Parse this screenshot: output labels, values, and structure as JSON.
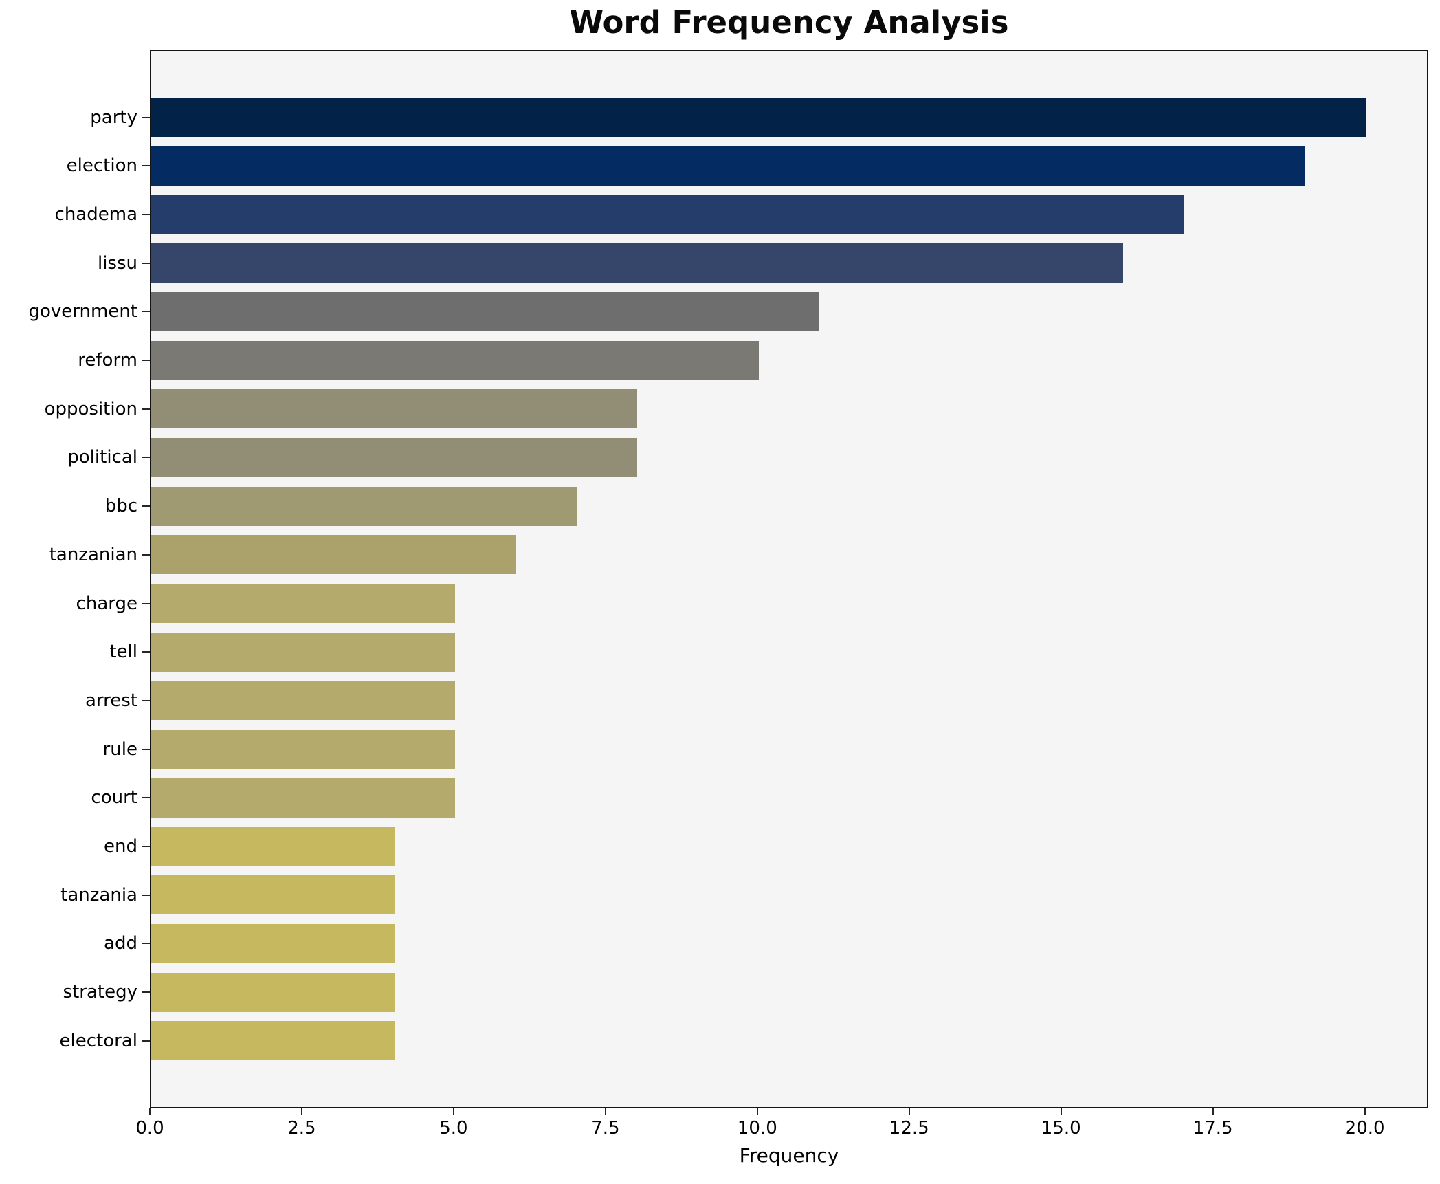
{
  "chart_data": {
    "type": "bar",
    "orientation": "horizontal",
    "title": "Word Frequency Analysis",
    "xlabel": "Frequency",
    "ylabel": "",
    "categories": [
      "party",
      "election",
      "chadema",
      "lissu",
      "government",
      "reform",
      "opposition",
      "political",
      "bbc",
      "tanzanian",
      "charge",
      "tell",
      "arrest",
      "rule",
      "court",
      "end",
      "tanzania",
      "add",
      "strategy",
      "electoral"
    ],
    "values": [
      20,
      19,
      17,
      16,
      11,
      10,
      8,
      8,
      7,
      6,
      5,
      5,
      5,
      5,
      5,
      4,
      4,
      4,
      4,
      4
    ],
    "bar_colors": [
      "#032248",
      "#042c62",
      "#253d6b",
      "#36466b",
      "#6f6e6e",
      "#7b7974",
      "#928d75",
      "#928d75",
      "#a09a72",
      "#aba26b",
      "#b4aa6b",
      "#b4aa6b",
      "#b4aa6b",
      "#b4aa6b",
      "#b4aa6b",
      "#c6b85e",
      "#c6b85e",
      "#c6b85e",
      "#c6b85e",
      "#c6b85e"
    ],
    "x_ticks": [
      0,
      2.5,
      5,
      7.5,
      10,
      12.5,
      15,
      17.5,
      20
    ],
    "x_tick_labels": [
      "0.0",
      "2.5",
      "5.0",
      "7.5",
      "10.0",
      "12.5",
      "15.0",
      "17.5",
      "20.0"
    ],
    "xlim": [
      0,
      21
    ],
    "grid": false,
    "legend_position": "none",
    "colormap": "cividis",
    "plot_background": "#f5f5f6",
    "figure_background": "#ffffff",
    "spine_color": "#141414"
  }
}
